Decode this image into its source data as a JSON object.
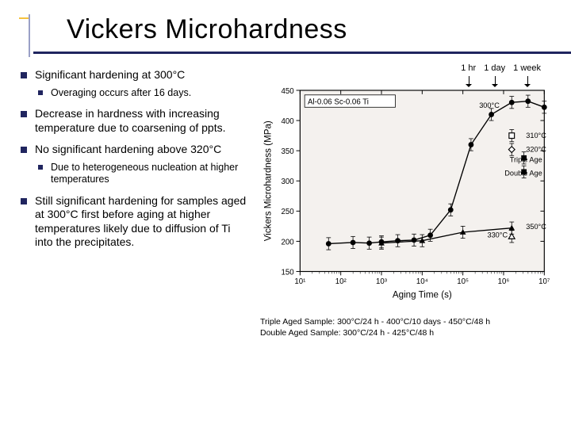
{
  "title": "Vickers Microhardness",
  "time_markers": [
    "1 hr",
    "1 day",
    "1 week"
  ],
  "bullets": {
    "b1": "Significant hardening at 300°C",
    "b1_sub": "Overaging occurs after 16 days.",
    "b2": "Decrease in hardness with increasing temperature due to coarsening of ppts.",
    "b3": "No significant hardening above 320°C",
    "b3_sub": "Due to heterogeneous nucleation at higher temperatures",
    "b4": "Still significant hardening for samples aged at 300°C first before aging at higher temperatures likely due to diffusion of Ti into the precipitates."
  },
  "chart": {
    "type": "scatter-line",
    "background_color": "#f4f1ee",
    "axis_color": "#000000",
    "grid": false,
    "xlabel": "Aging Time (s)",
    "ylabel": "Vickers Microhardness (MPa)",
    "label_fontsize": 12,
    "xlim_log10": [
      1,
      7
    ],
    "ylim": [
      150,
      450
    ],
    "ytick_step": 50,
    "xticks_log10": [
      1,
      2,
      3,
      4,
      5,
      6,
      7
    ],
    "xtick_labels": [
      "10¹",
      "10²",
      "10³",
      "10⁴",
      "10⁵",
      "10⁶",
      "10⁷"
    ],
    "legend_text": "Al-0.06 Sc-0.06 Ti",
    "series_annotations": [
      "300°C",
      "310°C",
      "320°C",
      "Triple Age",
      "Double Age",
      "350°C",
      "330°C"
    ],
    "series": [
      {
        "name": "300°C",
        "marker": "●",
        "color": "#000000",
        "line_width": 1.5,
        "x_log10": [
          1.7,
          2.3,
          2.7,
          3.0,
          3.4,
          3.8,
          4.2,
          4.7,
          5.2,
          5.7,
          6.2,
          6.6,
          7.0
        ],
        "y": [
          196,
          198,
          197,
          199,
          201,
          202,
          210,
          252,
          360,
          410,
          430,
          432,
          422
        ]
      },
      {
        "name": "310°C",
        "marker": "□",
        "color": "#000000",
        "x_log10": [
          6.2
        ],
        "y": [
          375
        ]
      },
      {
        "name": "320°C",
        "marker": "◇",
        "color": "#000000",
        "x_log10": [
          6.2
        ],
        "y": [
          352
        ]
      },
      {
        "name": "Triple Age",
        "marker": "■",
        "color": "#000000",
        "x_log10": [
          6.5
        ],
        "y": [
          338
        ]
      },
      {
        "name": "Double Age",
        "marker": "■",
        "color": "#000000",
        "x_log10": [
          6.5
        ],
        "y": [
          315
        ]
      },
      {
        "name": "350°C",
        "marker": "▲",
        "color": "#000000",
        "x_log10": [
          3.0,
          4.0,
          5.0,
          6.2
        ],
        "y": [
          197,
          201,
          215,
          222
        ]
      },
      {
        "name": "330°C",
        "marker": "△",
        "color": "#000000",
        "x_log10": [
          6.2
        ],
        "y": [
          208
        ]
      }
    ],
    "error_bar_half": 10
  },
  "caption": {
    "line1": "Triple Aged Sample: 300°C/24 h - 400°C/10 days - 450°C/48 h",
    "line2": "Double Aged Sample: 300°C/24 h - 425°C/48 h"
  },
  "colors": {
    "title_underline": "#20255f",
    "bullet": "#20255f",
    "tick_accent": "#f5c23e"
  }
}
